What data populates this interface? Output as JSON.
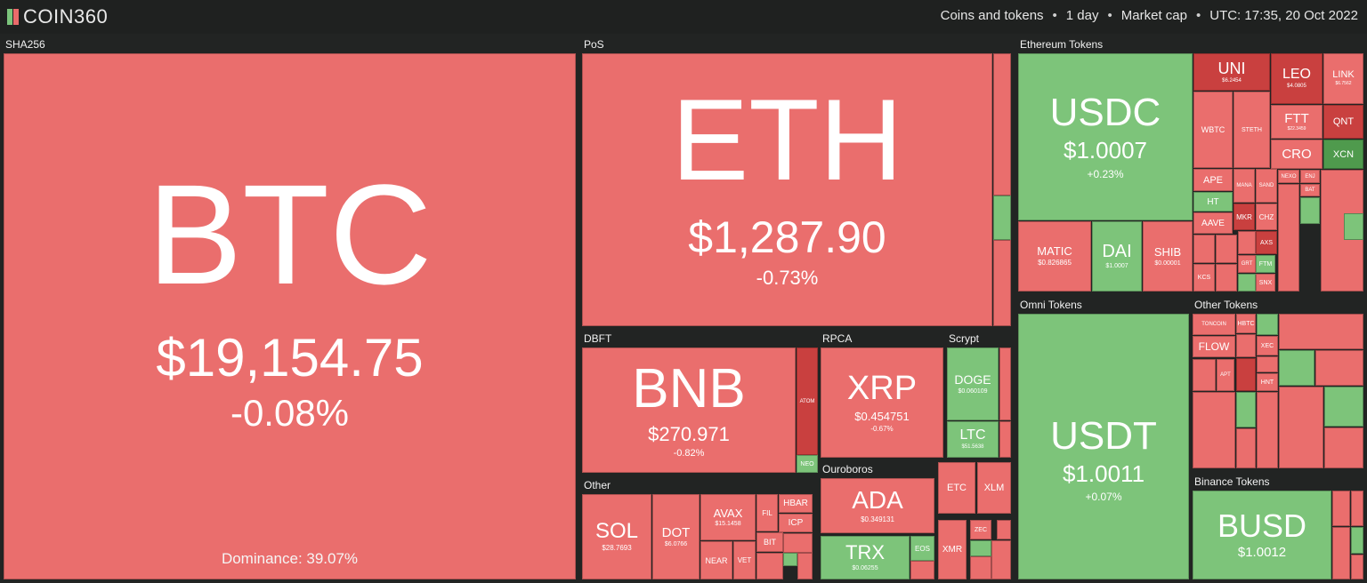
{
  "header": {
    "logo_text": "COIN360",
    "filter_type": "Coins and tokens",
    "filter_period": "1 day",
    "filter_metric": "Market cap",
    "timestamp": "UTC: 17:35, 20 Oct 2022",
    "separator": "•"
  },
  "colors": {
    "down": "#ea6e6d",
    "down_strong": "#c9403f",
    "up": "#7dc47a",
    "up_strong": "#4f9a4d",
    "background": "#222423"
  },
  "sectors": {
    "sha256": "SHA256",
    "pos": "PoS",
    "dbft": "DBFT",
    "rpca": "RPCA",
    "scrypt": "Scrypt",
    "other": "Other",
    "ouroboros": "Ouroboros",
    "ethereum_tokens": "Ethereum Tokens",
    "omni_tokens": "Omni Tokens",
    "other_tokens": "Other Tokens",
    "binance_tokens": "Binance Tokens"
  },
  "coins": {
    "btc": {
      "symbol": "BTC",
      "price": "$19,154.75",
      "change": "-0.08%",
      "dominance": "Dominance: 39.07%"
    },
    "eth": {
      "symbol": "ETH",
      "price": "$1,287.90",
      "change": "-0.73%"
    },
    "bnb": {
      "symbol": "BNB",
      "price": "$270.971",
      "change": "-0.82%"
    },
    "atom": {
      "symbol": "ATOM"
    },
    "neo": {
      "symbol": "NEO"
    },
    "xrp": {
      "symbol": "XRP",
      "price": "$0.454751",
      "change": "-0.67%"
    },
    "doge": {
      "symbol": "DOGE",
      "price": "$0.060109"
    },
    "ltc": {
      "symbol": "LTC",
      "price": "$51.5638"
    },
    "sol": {
      "symbol": "SOL",
      "price": "$28.7693"
    },
    "dot": {
      "symbol": "DOT",
      "price": "$6.0766"
    },
    "avax": {
      "symbol": "AVAX",
      "price": "$15.1458"
    },
    "near": {
      "symbol": "NEAR"
    },
    "fil": {
      "symbol": "FIL"
    },
    "hbar": {
      "symbol": "HBAR"
    },
    "icp": {
      "symbol": "ICP"
    },
    "bit": {
      "symbol": "BIT"
    },
    "vet": {
      "symbol": "VET"
    },
    "ada": {
      "symbol": "ADA",
      "price": "$0.349131"
    },
    "trx": {
      "symbol": "TRX",
      "price": "$0.06255"
    },
    "eos": {
      "symbol": "EOS"
    },
    "etc": {
      "symbol": "ETC"
    },
    "xlm": {
      "symbol": "XLM"
    },
    "xmr": {
      "symbol": "XMR"
    },
    "zec": {
      "symbol": "ZEC"
    },
    "usdc": {
      "symbol": "USDC",
      "price": "$1.0007",
      "change": "+0.23%"
    },
    "uni": {
      "symbol": "UNI",
      "price": "$6.2454"
    },
    "leo": {
      "symbol": "LEO",
      "price": "$4.0805"
    },
    "link": {
      "symbol": "LINK",
      "price": "$6.7562"
    },
    "wbtc": {
      "symbol": "WBTC"
    },
    "steth": {
      "symbol": "STETH"
    },
    "ftt": {
      "symbol": "FTT",
      "price": "$22.3459"
    },
    "qnt": {
      "symbol": "QNT"
    },
    "cro": {
      "symbol": "CRO"
    },
    "xcn": {
      "symbol": "XCN"
    },
    "ape": {
      "symbol": "APE"
    },
    "mana": {
      "symbol": "MANA"
    },
    "sand": {
      "symbol": "SAND"
    },
    "nexo": {
      "symbol": "NEXO"
    },
    "enj": {
      "symbol": "ENJ"
    },
    "bat": {
      "symbol": "BAT"
    },
    "ht": {
      "symbol": "HT"
    },
    "aave": {
      "symbol": "AAVE"
    },
    "mkr": {
      "symbol": "MKR"
    },
    "chz": {
      "symbol": "CHZ"
    },
    "axs": {
      "symbol": "AXS"
    },
    "grt": {
      "symbol": "GRT"
    },
    "snx": {
      "symbol": "SNX"
    },
    "ftm": {
      "symbol": "FTM"
    },
    "kcs": {
      "symbol": "KCS"
    },
    "matic": {
      "symbol": "MATIC",
      "price": "$0.826865"
    },
    "dai": {
      "symbol": "DAI",
      "price": "$1.0007"
    },
    "shib": {
      "symbol": "SHIB",
      "price": "$0.00001"
    },
    "usdt": {
      "symbol": "USDT",
      "price": "$1.0011",
      "change": "+0.07%"
    },
    "toncoin": {
      "symbol": "TONCOIN"
    },
    "flow": {
      "symbol": "FLOW"
    },
    "xec": {
      "symbol": "XEC"
    },
    "hbtc": {
      "symbol": "HBTC"
    },
    "apt": {
      "symbol": "APT"
    },
    "hnt": {
      "symbol": "HNT"
    },
    "busd": {
      "symbol": "BUSD",
      "price": "$1.0012"
    }
  }
}
